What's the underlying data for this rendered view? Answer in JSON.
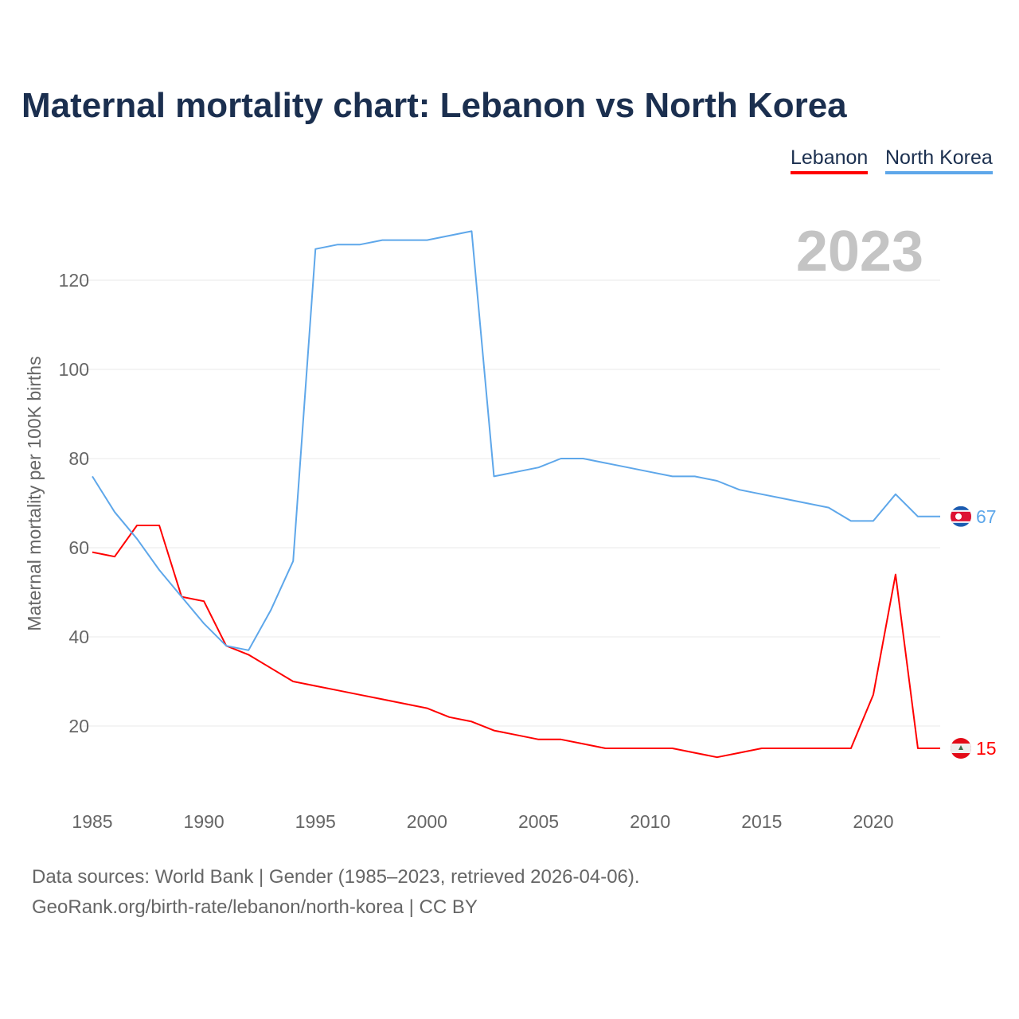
{
  "title": "Maternal mortality chart: Lebanon vs North Korea",
  "footer": {
    "line1": "Data sources: World Bank | Gender (1985–2023, retrieved 2026-04-06).",
    "line2": "GeoRank.org/birth-rate/lebanon/north-korea | CC BY"
  },
  "chart_data": {
    "type": "line",
    "title": "Maternal mortality chart: Lebanon vs North Korea",
    "ylabel": "Maternal mortality per 100K births",
    "xlabel": "",
    "year_label": "2023",
    "x": [
      1985,
      1986,
      1987,
      1988,
      1989,
      1990,
      1991,
      1992,
      1993,
      1994,
      1995,
      1996,
      1997,
      1998,
      1999,
      2000,
      2001,
      2002,
      2003,
      2004,
      2005,
      2006,
      2007,
      2008,
      2009,
      2010,
      2011,
      2012,
      2013,
      2014,
      2015,
      2016,
      2017,
      2018,
      2019,
      2020,
      2021,
      2022,
      2023
    ],
    "xlim": [
      1985,
      2023
    ],
    "ylim": [
      4,
      135
    ],
    "xticks": [
      1985,
      1990,
      1995,
      2000,
      2005,
      2010,
      2015,
      2020
    ],
    "yticks": [
      20,
      40,
      60,
      80,
      100,
      120
    ],
    "grid": true,
    "legend_position": "top-right",
    "series": [
      {
        "name": "Lebanon",
        "color": "#ff0000",
        "end_label": "15",
        "values": [
          59,
          58,
          65,
          65,
          49,
          48,
          38,
          36,
          33,
          30,
          29,
          28,
          27,
          26,
          25,
          24,
          22,
          21,
          19,
          18,
          17,
          17,
          16,
          15,
          15,
          15,
          15,
          14,
          13,
          14,
          15,
          15,
          15,
          15,
          15,
          27,
          54,
          15,
          15
        ]
      },
      {
        "name": "North Korea",
        "color": "#5ea7ea",
        "end_label": "67",
        "values": [
          76,
          68,
          62,
          55,
          49,
          43,
          38,
          37,
          46,
          57,
          127,
          128,
          128,
          129,
          129,
          129,
          130,
          131,
          76,
          77,
          78,
          80,
          80,
          79,
          78,
          77,
          76,
          76,
          75,
          73,
          72,
          71,
          70,
          69,
          66,
          66,
          72,
          67,
          67
        ]
      }
    ]
  }
}
